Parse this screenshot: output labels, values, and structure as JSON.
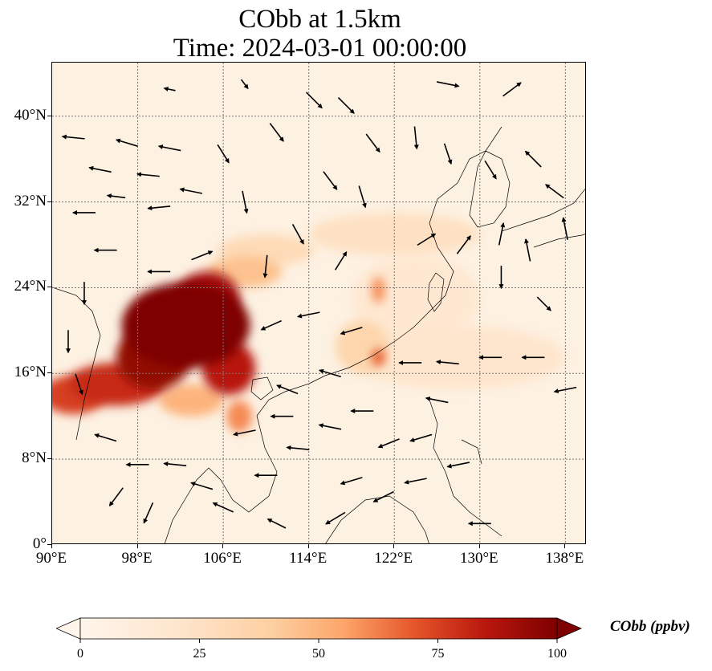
{
  "title_line_1": "CObb at 1.5km",
  "title_line_2": "Time: 2024-03-01 00:00:00",
  "map": {
    "lon_range": [
      90,
      140
    ],
    "lat_range": [
      0,
      45
    ],
    "lat_ticks": [
      {
        "value": 40,
        "label": "40°N"
      },
      {
        "value": 32,
        "label": "32°N"
      },
      {
        "value": 24,
        "label": "24°N"
      },
      {
        "value": 16,
        "label": "16°N"
      },
      {
        "value": 8,
        "label": "8°N"
      },
      {
        "value": 0,
        "label": "0°"
      }
    ],
    "lon_ticks": [
      {
        "value": 90,
        "label": "90°E"
      },
      {
        "value": 98,
        "label": "98°E"
      },
      {
        "value": 106,
        "label": "106°E"
      },
      {
        "value": 114,
        "label": "114°E"
      },
      {
        "value": 122,
        "label": "122°E"
      },
      {
        "value": 130,
        "label": "130°E"
      },
      {
        "value": 138,
        "label": "138°E"
      }
    ],
    "gridlines": true,
    "colors": {
      "low": "#fff5eb",
      "mid": "#fdbe85",
      "high": "#d94701",
      "max": "#7f0000",
      "coast": "#000000",
      "wind": "#000000"
    },
    "concentration_field": [
      {
        "lon": 102.5,
        "lat": 20.5,
        "value": 100,
        "rlon": 6.0,
        "rlat": 4.0
      },
      {
        "lon": 99.5,
        "lat": 17.5,
        "value": 95,
        "rlon": 3.5,
        "rlat": 3.0
      },
      {
        "lon": 104.5,
        "lat": 23.0,
        "value": 90,
        "rlon": 3.0,
        "rlat": 2.5
      },
      {
        "lon": 96.0,
        "lat": 15.0,
        "value": 80,
        "rlon": 4.5,
        "rlat": 2.0
      },
      {
        "lon": 92.0,
        "lat": 14.0,
        "value": 75,
        "rlon": 3.0,
        "rlat": 1.8
      },
      {
        "lon": 106.5,
        "lat": 16.5,
        "value": 85,
        "rlon": 2.5,
        "rlat": 2.5
      },
      {
        "lon": 107.5,
        "lat": 12.0,
        "value": 60,
        "rlon": 1.2,
        "rlat": 1.5
      },
      {
        "lon": 103.0,
        "lat": 13.5,
        "value": 50,
        "rlon": 3.0,
        "rlat": 1.5
      },
      {
        "lon": 108.0,
        "lat": 25.5,
        "value": 45,
        "rlon": 3.5,
        "rlat": 1.5
      },
      {
        "lon": 110.0,
        "lat": 27.5,
        "value": 30,
        "rlon": 4.5,
        "rlat": 1.5
      },
      {
        "lon": 119.0,
        "lat": 18.5,
        "value": 35,
        "rlon": 2.5,
        "rlat": 2.5
      },
      {
        "lon": 120.5,
        "lat": 17.5,
        "value": 70,
        "rlon": 0.6,
        "rlat": 0.8
      },
      {
        "lon": 120.5,
        "lat": 23.8,
        "value": 60,
        "rlon": 0.6,
        "rlat": 1.2
      },
      {
        "lon": 122.0,
        "lat": 29.0,
        "value": 25,
        "rlon": 8.0,
        "rlat": 2.0
      },
      {
        "lon": 128.0,
        "lat": 17.5,
        "value": 20,
        "rlon": 10.0,
        "rlat": 3.0
      },
      {
        "lon": 124.0,
        "lat": 23.0,
        "value": 18,
        "rlon": 6.0,
        "rlat": 4.0
      }
    ],
    "wind_vectors": [
      {
        "lon": 92.0,
        "lat": 38.0,
        "u": -1.0,
        "v": 0.1
      },
      {
        "lon": 94.5,
        "lat": 35.0,
        "u": -1.0,
        "v": 0.2
      },
      {
        "lon": 97.0,
        "lat": 37.5,
        "u": -1.0,
        "v": 0.3
      },
      {
        "lon": 99.0,
        "lat": 34.5,
        "u": -1.0,
        "v": 0.1
      },
      {
        "lon": 101.0,
        "lat": 37.0,
        "u": -1.0,
        "v": 0.2
      },
      {
        "lon": 93.0,
        "lat": 31.0,
        "u": -1.0,
        "v": 0.0
      },
      {
        "lon": 96.0,
        "lat": 32.5,
        "u": -0.8,
        "v": 0.1
      },
      {
        "lon": 100.0,
        "lat": 31.5,
        "u": -1.0,
        "v": -0.1
      },
      {
        "lon": 103.0,
        "lat": 33.0,
        "u": -1.0,
        "v": 0.2
      },
      {
        "lon": 106.0,
        "lat": 36.5,
        "u": 0.5,
        "v": -0.8
      },
      {
        "lon": 108.0,
        "lat": 32.0,
        "u": 0.2,
        "v": -1.0
      },
      {
        "lon": 111.0,
        "lat": 38.5,
        "u": 0.6,
        "v": -0.8
      },
      {
        "lon": 114.5,
        "lat": 41.5,
        "u": 0.7,
        "v": -0.7
      },
      {
        "lon": 117.5,
        "lat": 41.0,
        "u": 0.7,
        "v": -0.7
      },
      {
        "lon": 120.0,
        "lat": 37.5,
        "u": 0.6,
        "v": -0.8
      },
      {
        "lon": 116.0,
        "lat": 34.0,
        "u": 0.6,
        "v": -0.8
      },
      {
        "lon": 119.0,
        "lat": 32.5,
        "u": 0.3,
        "v": -1.0
      },
      {
        "lon": 124.0,
        "lat": 38.0,
        "u": 0.1,
        "v": -1.0
      },
      {
        "lon": 127.0,
        "lat": 36.5,
        "u": 0.3,
        "v": -0.9
      },
      {
        "lon": 131.0,
        "lat": 35.0,
        "u": 0.5,
        "v": -0.8
      },
      {
        "lon": 135.0,
        "lat": 36.0,
        "u": -0.7,
        "v": 0.7
      },
      {
        "lon": 137.0,
        "lat": 33.0,
        "u": -0.8,
        "v": 0.6
      },
      {
        "lon": 132.0,
        "lat": 29.0,
        "u": 0.2,
        "v": 1.0
      },
      {
        "lon": 134.5,
        "lat": 27.5,
        "u": -0.2,
        "v": 1.0
      },
      {
        "lon": 138.0,
        "lat": 29.5,
        "u": -0.2,
        "v": 1.0
      },
      {
        "lon": 128.5,
        "lat": 28.0,
        "u": 0.6,
        "v": 0.8
      },
      {
        "lon": 125.0,
        "lat": 28.5,
        "u": 0.8,
        "v": 0.5
      },
      {
        "lon": 113.0,
        "lat": 29.0,
        "u": 0.5,
        "v": -0.9
      },
      {
        "lon": 117.0,
        "lat": 26.5,
        "u": 0.5,
        "v": 0.8
      },
      {
        "lon": 110.0,
        "lat": 26.0,
        "u": -0.1,
        "v": -1.0
      },
      {
        "lon": 104.0,
        "lat": 27.0,
        "u": 1.0,
        "v": 0.4
      },
      {
        "lon": 100.0,
        "lat": 25.5,
        "u": -1.0,
        "v": 0.0
      },
      {
        "lon": 95.0,
        "lat": 27.5,
        "u": -1.0,
        "v": 0.0
      },
      {
        "lon": 93.0,
        "lat": 23.5,
        "u": 0.0,
        "v": -1.0
      },
      {
        "lon": 91.5,
        "lat": 19.0,
        "u": 0.0,
        "v": -1.0
      },
      {
        "lon": 92.5,
        "lat": 15.0,
        "u": 0.3,
        "v": -0.9
      },
      {
        "lon": 95.0,
        "lat": 10.0,
        "u": -1.0,
        "v": 0.3
      },
      {
        "lon": 98.0,
        "lat": 7.5,
        "u": -1.0,
        "v": 0.0
      },
      {
        "lon": 101.5,
        "lat": 7.5,
        "u": -1.0,
        "v": 0.1
      },
      {
        "lon": 104.0,
        "lat": 5.5,
        "u": -1.0,
        "v": 0.3
      },
      {
        "lon": 106.0,
        "lat": 3.5,
        "u": -0.9,
        "v": 0.4
      },
      {
        "lon": 110.0,
        "lat": 6.5,
        "u": -1.0,
        "v": 0.0
      },
      {
        "lon": 113.0,
        "lat": 9.0,
        "u": -1.0,
        "v": 0.1
      },
      {
        "lon": 116.0,
        "lat": 11.0,
        "u": -1.0,
        "v": 0.2
      },
      {
        "lon": 119.0,
        "lat": 12.5,
        "u": -1.0,
        "v": 0.0
      },
      {
        "lon": 112.0,
        "lat": 14.5,
        "u": -1.0,
        "v": 0.4
      },
      {
        "lon": 116.0,
        "lat": 16.0,
        "u": -1.0,
        "v": 0.3
      },
      {
        "lon": 110.5,
        "lat": 20.5,
        "u": -0.9,
        "v": -0.4
      },
      {
        "lon": 114.0,
        "lat": 21.5,
        "u": -1.0,
        "v": -0.2
      },
      {
        "lon": 118.0,
        "lat": 20.0,
        "u": -1.0,
        "v": -0.3
      },
      {
        "lon": 123.5,
        "lat": 17.0,
        "u": -1.0,
        "v": 0.0
      },
      {
        "lon": 127.0,
        "lat": 17.0,
        "u": -1.0,
        "v": 0.1
      },
      {
        "lon": 131.0,
        "lat": 17.5,
        "u": -1.0,
        "v": 0.0
      },
      {
        "lon": 135.0,
        "lat": 17.5,
        "u": -1.0,
        "v": 0.0
      },
      {
        "lon": 138.0,
        "lat": 14.5,
        "u": -1.0,
        "v": -0.2
      },
      {
        "lon": 126.0,
        "lat": 13.5,
        "u": -1.0,
        "v": 0.2
      },
      {
        "lon": 121.5,
        "lat": 9.5,
        "u": -1.0,
        "v": -0.4
      },
      {
        "lon": 118.0,
        "lat": 6.0,
        "u": -1.0,
        "v": -0.3
      },
      {
        "lon": 124.0,
        "lat": 6.0,
        "u": -1.0,
        "v": -0.2
      },
      {
        "lon": 128.0,
        "lat": 7.5,
        "u": -1.0,
        "v": -0.2
      },
      {
        "lon": 130.0,
        "lat": 2.0,
        "u": -1.0,
        "v": 0.0
      },
      {
        "lon": 116.5,
        "lat": 2.5,
        "u": -1.0,
        "v": -0.6
      },
      {
        "lon": 121.0,
        "lat": 4.5,
        "u": -1.0,
        "v": -0.5
      },
      {
        "lon": 111.0,
        "lat": 2.0,
        "u": -0.8,
        "v": 0.4
      },
      {
        "lon": 99.0,
        "lat": 3.0,
        "u": -0.4,
        "v": -0.9
      },
      {
        "lon": 96.0,
        "lat": 4.5,
        "u": -0.6,
        "v": -0.8
      },
      {
        "lon": 108.0,
        "lat": 10.5,
        "u": -1.0,
        "v": -0.2
      },
      {
        "lon": 111.5,
        "lat": 12.0,
        "u": -1.0,
        "v": 0.0
      },
      {
        "lon": 124.5,
        "lat": 10.0,
        "u": -1.0,
        "v": -0.3
      },
      {
        "lon": 136.0,
        "lat": 22.5,
        "u": 0.6,
        "v": -0.6
      },
      {
        "lon": 132.0,
        "lat": 25.0,
        "u": 0.0,
        "v": -1.0
      },
      {
        "lon": 127.0,
        "lat": 43.0,
        "u": 1.0,
        "v": -0.2
      },
      {
        "lon": 133.0,
        "lat": 42.5,
        "u": 0.8,
        "v": 0.6
      },
      {
        "lon": 108.0,
        "lat": 43.0,
        "u": 0.3,
        "v": -0.4
      },
      {
        "lon": 101.0,
        "lat": 42.5,
        "u": -0.5,
        "v": 0.1
      }
    ]
  },
  "colorbar": {
    "title": "CObb (ppbv)",
    "vmin": 0,
    "vmax": 100,
    "extend": "both",
    "ticks": [
      {
        "value": 0,
        "label": "0"
      },
      {
        "value": 25,
        "label": "25"
      },
      {
        "value": 50,
        "label": "50"
      },
      {
        "value": 75,
        "label": "75"
      },
      {
        "value": 100,
        "label": "100"
      }
    ]
  }
}
